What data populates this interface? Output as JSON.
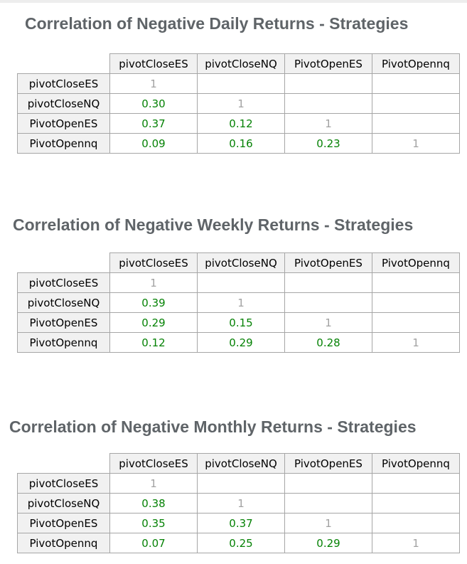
{
  "top_bar": {
    "color": "#ededed"
  },
  "colors": {
    "title_text": "#5f6468",
    "positive_value_green": "#058205",
    "diagonal_gray": "#a2a2a2",
    "table_border": "#a6a6a6",
    "header_background": "#f1f1f1"
  },
  "chart_data": [
    {
      "type": "table",
      "title": "Correlation of Negative Daily Returns - Strategies",
      "columns": [
        "pivotCloseES",
        "pivotCloseNQ",
        "PivotOpenES",
        "PivotOpennq"
      ],
      "rows": [
        {
          "label": "pivotCloseES",
          "values": [
            "1",
            "",
            "",
            ""
          ]
        },
        {
          "label": "pivotCloseNQ",
          "values": [
            "0.30",
            "1",
            "",
            ""
          ]
        },
        {
          "label": "PivotOpenES",
          "values": [
            "0.37",
            "0.12",
            "1",
            ""
          ]
        },
        {
          "label": "PivotOpennq",
          "values": [
            "0.09",
            "0.16",
            "0.23",
            "1"
          ]
        }
      ]
    },
    {
      "type": "table",
      "title": "Correlation of Negative Weekly Returns - Strategies",
      "columns": [
        "pivotCloseES",
        "pivotCloseNQ",
        "PivotOpenES",
        "PivotOpennq"
      ],
      "rows": [
        {
          "label": "pivotCloseES",
          "values": [
            "1",
            "",
            "",
            ""
          ]
        },
        {
          "label": "pivotCloseNQ",
          "values": [
            "0.39",
            "1",
            "",
            ""
          ]
        },
        {
          "label": "PivotOpenES",
          "values": [
            "0.29",
            "0.15",
            "1",
            ""
          ]
        },
        {
          "label": "PivotOpennq",
          "values": [
            "0.12",
            "0.29",
            "0.28",
            "1"
          ]
        }
      ]
    },
    {
      "type": "table",
      "title": "Correlation of Negative Monthly Returns - Strategies",
      "columns": [
        "pivotCloseES",
        "pivotCloseNQ",
        "PivotOpenES",
        "PivotOpennq"
      ],
      "rows": [
        {
          "label": "pivotCloseES",
          "values": [
            "1",
            "",
            "",
            ""
          ]
        },
        {
          "label": "pivotCloseNQ",
          "values": [
            "0.38",
            "1",
            "",
            ""
          ]
        },
        {
          "label": "PivotOpenES",
          "values": [
            "0.35",
            "0.37",
            "1",
            ""
          ]
        },
        {
          "label": "PivotOpennq",
          "values": [
            "0.07",
            "0.25",
            "0.29",
            "1"
          ]
        }
      ]
    }
  ]
}
